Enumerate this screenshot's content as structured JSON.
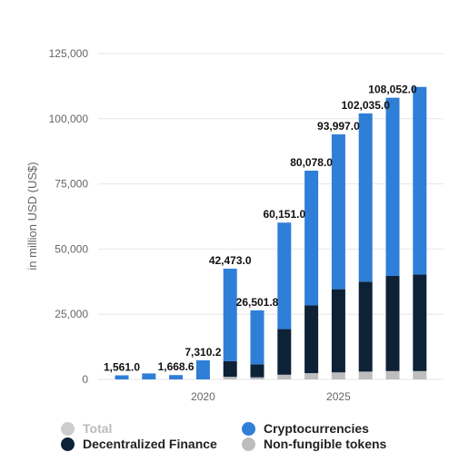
{
  "chart_data": {
    "type": "bar",
    "stacked": true,
    "x": [
      2017,
      2018,
      2019,
      2020,
      2021,
      2022,
      2023,
      2024,
      2025,
      2026,
      2027,
      2028
    ],
    "x_tick_labels": [
      "2020",
      "2025"
    ],
    "ylabel": "in million USD (US$)",
    "ylim": [
      0,
      125000
    ],
    "yticks": [
      0,
      25000,
      50000,
      75000,
      100000,
      125000
    ],
    "ytick_labels": [
      "0",
      "25,000",
      "50,000",
      "75,000",
      "100,000",
      "125,000"
    ],
    "grid": true,
    "legend_position": "bottom",
    "series": [
      {
        "name": "Non-fungible tokens",
        "color": "#bdbdbd",
        "values": [
          0,
          0,
          0,
          0,
          1000,
          800,
          1800,
          2400,
          2700,
          3000,
          3200,
          3200
        ]
      },
      {
        "name": "Decentralized Finance",
        "color": "#0d2137",
        "values": [
          0,
          0,
          0,
          0,
          6000,
          5000,
          17500,
          26000,
          31900,
          34500,
          36500,
          37000
        ]
      },
      {
        "name": "Cryptocurrencies",
        "color": "#2f7ed8",
        "values": [
          1561,
          2300,
          1669,
          7310,
          35473,
          20702,
          40851,
          51678,
          59397,
          64535,
          68352,
          72000
        ]
      }
    ],
    "total_labels": [
      "1,561.0",
      "",
      "1,668.6",
      "7,310.2",
      "42,473.0",
      "26,501.8",
      "60,151.0",
      "80,078.0",
      "93,997.0",
      "102,035.0",
      "108,052.0",
      ""
    ],
    "legend": [
      {
        "label": "Total",
        "color": "#cccccc",
        "disabled": true
      },
      {
        "label": "Cryptocurrencies",
        "color": "#2f7ed8",
        "disabled": false
      },
      {
        "label": "Decentralized Finance",
        "color": "#0d2137",
        "disabled": false
      },
      {
        "label": "Non-fungible tokens",
        "color": "#bdbdbd",
        "disabled": false
      }
    ]
  }
}
